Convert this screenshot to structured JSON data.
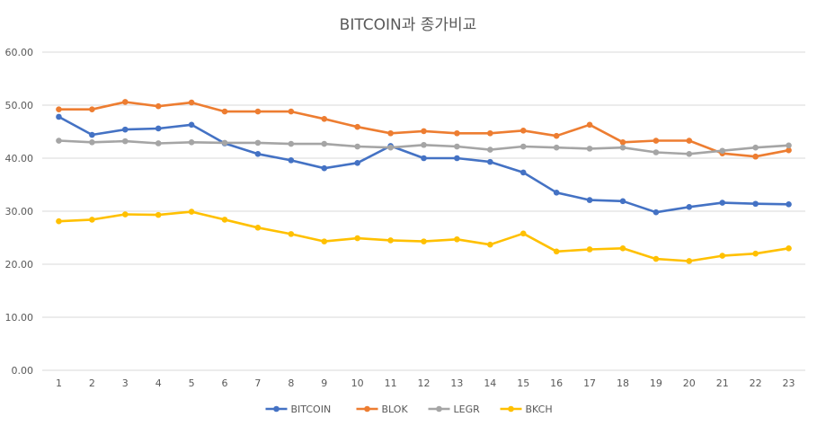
{
  "chart_data": {
    "type": "line",
    "title": "BITCOIN과 종가비교",
    "xlabel": "",
    "ylabel": "",
    "ylim": [
      0,
      60
    ],
    "yticks": [
      "0.00",
      "10.00",
      "20.00",
      "30.00",
      "40.00",
      "50.00",
      "60.00"
    ],
    "categories": [
      "1",
      "2",
      "3",
      "4",
      "5",
      "6",
      "7",
      "8",
      "9",
      "10",
      "11",
      "12",
      "13",
      "14",
      "15",
      "16",
      "17",
      "18",
      "19",
      "20",
      "21",
      "22",
      "23"
    ],
    "grid": true,
    "legend_position": "bottom",
    "series": [
      {
        "name": "BITCOIN",
        "color": "#4472c4",
        "values": [
          47.8,
          44.4,
          45.4,
          45.6,
          46.3,
          42.8,
          40.8,
          39.6,
          38.1,
          39.1,
          42.3,
          40.0,
          40.0,
          39.3,
          37.3,
          33.5,
          32.1,
          31.9,
          29.8,
          30.8,
          31.6,
          31.4,
          31.3
        ]
      },
      {
        "name": "BLOK",
        "color": "#ed7d31",
        "values": [
          49.2,
          49.2,
          50.6,
          49.8,
          50.5,
          48.8,
          48.8,
          48.8,
          47.4,
          45.9,
          44.7,
          45.1,
          44.7,
          44.7,
          45.2,
          44.2,
          46.3,
          43.0,
          43.3,
          43.3,
          40.9,
          40.3,
          41.5
        ]
      },
      {
        "name": "LEGR",
        "color": "#a5a5a5",
        "values": [
          43.3,
          43.0,
          43.2,
          42.8,
          43.0,
          42.9,
          42.9,
          42.7,
          42.7,
          42.2,
          42.0,
          42.5,
          42.2,
          41.6,
          42.2,
          42.0,
          41.8,
          42.0,
          41.1,
          40.8,
          41.4,
          42.0,
          42.4
        ]
      },
      {
        "name": "BKCH",
        "color": "#ffc000",
        "values": [
          28.1,
          28.4,
          29.4,
          29.3,
          29.9,
          28.4,
          26.9,
          25.7,
          24.3,
          24.9,
          24.5,
          24.3,
          24.7,
          23.7,
          25.8,
          22.4,
          22.8,
          23.0,
          21.0,
          20.6,
          21.6,
          22.0,
          23.0
        ]
      }
    ]
  }
}
